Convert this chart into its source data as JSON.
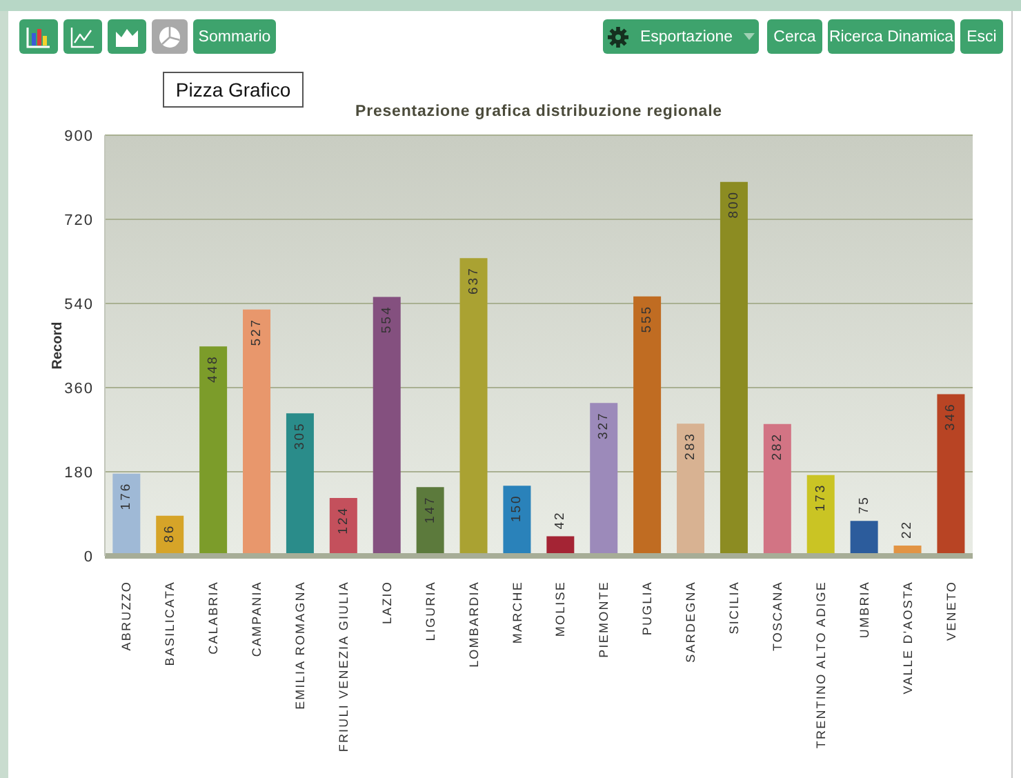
{
  "chart_data": {
    "type": "bar",
    "title": "Presentazione grafica distribuzione regionale",
    "ylabel": "Record",
    "categories": [
      "ABRUZZO",
      "BASILICATA",
      "CALABRIA",
      "CAMPANIA",
      "EMILIA ROMAGNA",
      "FRIULI VENEZIA GIULIA",
      "LAZIO",
      "LIGURIA",
      "LOMBARDIA",
      "MARCHE",
      "MOLISE",
      "PIEMONTE",
      "PUGLIA",
      "SARDEGNA",
      "SICILIA",
      "TOSCANA",
      "TRENTINO ALTO ADIGE",
      "UMBRIA",
      "VALLE D'AOSTA",
      "VENETO"
    ],
    "values": [
      176,
      86,
      448,
      527,
      305,
      124,
      554,
      147,
      637,
      150,
      42,
      327,
      555,
      283,
      800,
      282,
      173,
      75,
      22,
      346
    ],
    "colors": [
      "#9fb9d6",
      "#d6a428",
      "#7c9c2a",
      "#e8976c",
      "#2a8c8a",
      "#c4505c",
      "#84507f",
      "#5c7a3c",
      "#aaa232",
      "#2a82ba",
      "#a42434",
      "#9c8aba",
      "#c06c22",
      "#d8b292",
      "#8c8c22",
      "#d27484",
      "#cac424",
      "#2c5c9c",
      "#e29444",
      "#b84424"
    ],
    "ylim": [
      0,
      900
    ],
    "yticks": [
      0,
      180,
      360,
      540,
      720,
      900
    ],
    "grid": "y",
    "data_labels": true,
    "annotations": [
      "Sommario",
      "Esportazione",
      "Cerca",
      "Ricerca Dinamica",
      "Esci",
      "Pizza Grafico"
    ]
  }
}
